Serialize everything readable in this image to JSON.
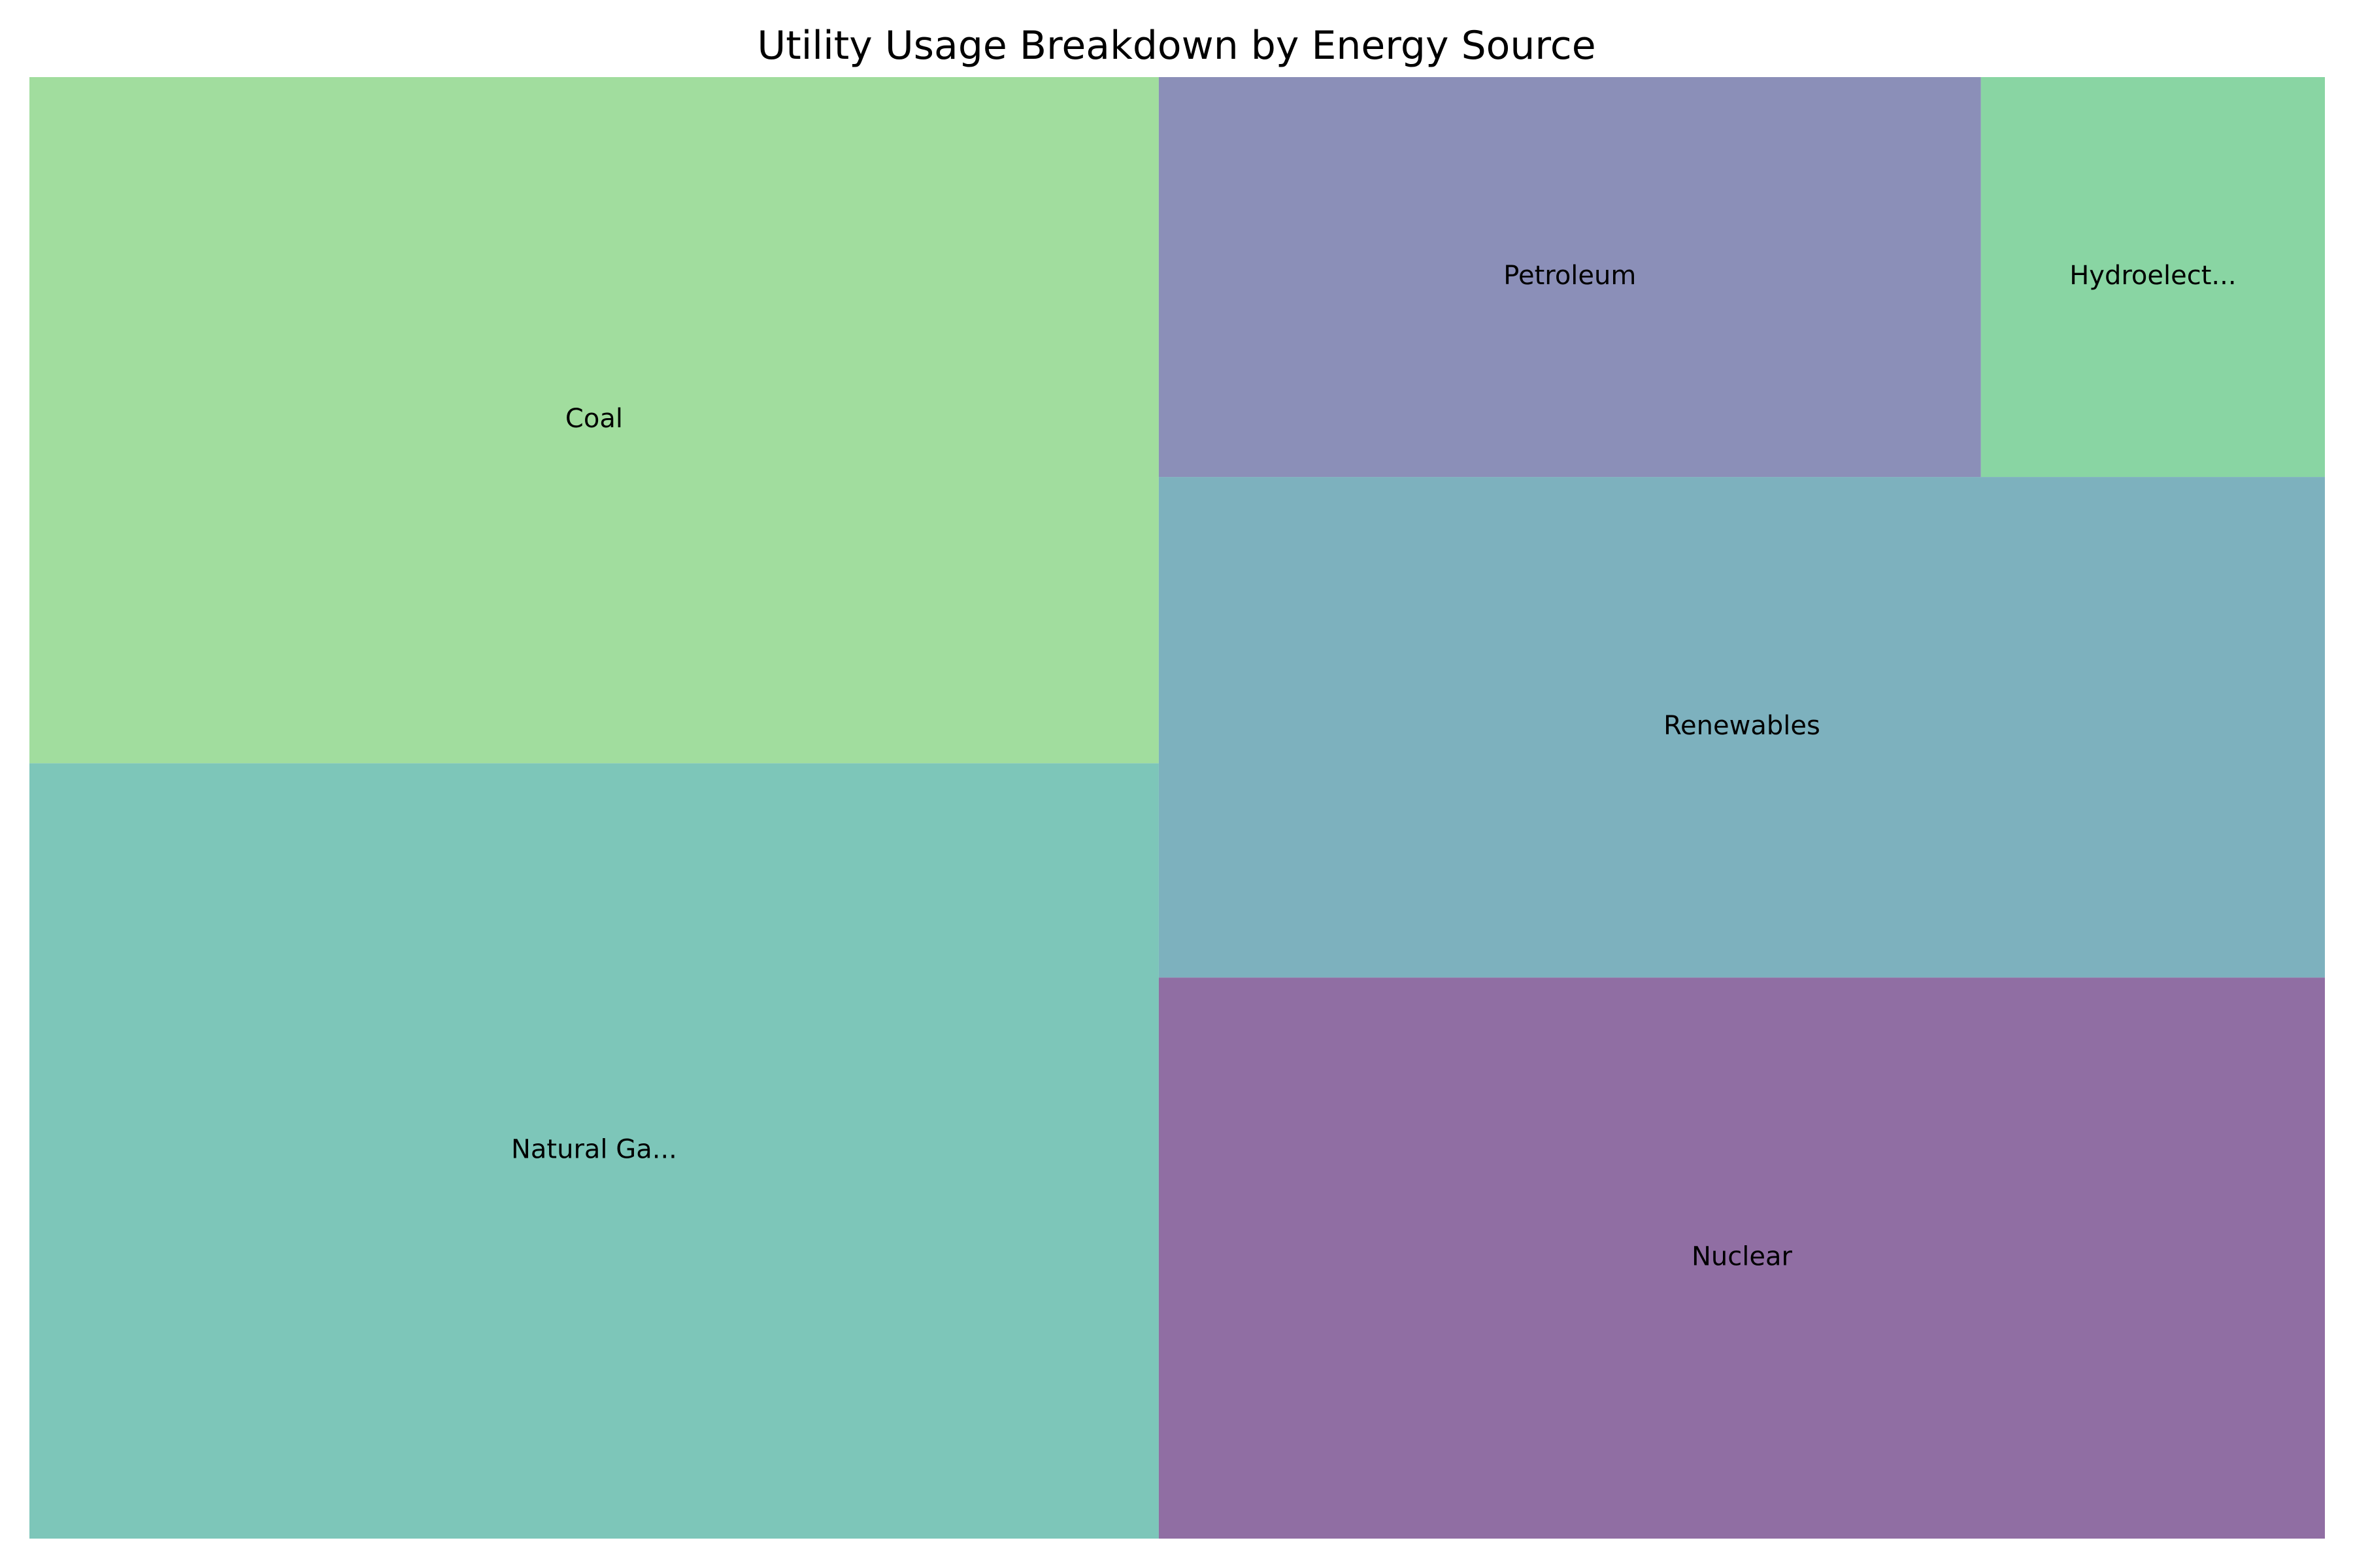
{
  "chart_data": {
    "type": "treemap",
    "title": "Utility Usage Breakdown by Energy Source",
    "tiles": [
      {
        "label": "Natural Ga...",
        "value": 26.1,
        "color": "#5cb8a8"
      },
      {
        "label": "Coal",
        "value": 23.1,
        "color": "#89d586"
      },
      {
        "label": "Nuclear",
        "value": 19.5,
        "color": "#744a8c"
      },
      {
        "label": "Renewables",
        "value": 17.4,
        "color": "#5d9eae"
      },
      {
        "label": "Petroleum",
        "value": 9.8,
        "color": "#6e73a6"
      },
      {
        "label": "Hydroelect...",
        "value": 4.1,
        "color": "#6ccb8c"
      }
    ]
  }
}
